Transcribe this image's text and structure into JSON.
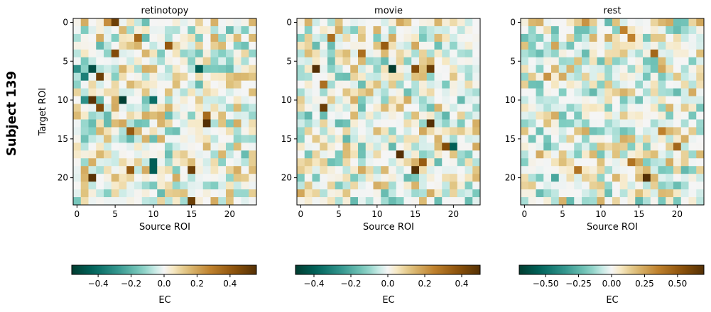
{
  "figure": {
    "row_label": "Subject 139"
  },
  "chart_data": [
    {
      "type": "heatmap",
      "title": "retinotopy",
      "xlabel": "Source ROI",
      "ylabel": "Target ROI",
      "n_rois": 24,
      "xticks": [
        0,
        5,
        10,
        15,
        20
      ],
      "yticks": [
        0,
        5,
        10,
        15,
        20
      ],
      "colormap": "BrBG_r",
      "vmin": -0.56,
      "vmax": 0.56,
      "colorbar": {
        "label": "EC",
        "ticks": [
          -0.4,
          -0.2,
          0.0,
          0.2,
          0.4
        ],
        "tick_labels": [
          "−0.4",
          "−0.2",
          "0.0",
          "0.2",
          "0.4"
        ]
      },
      "highlights": [
        {
          "r": 0,
          "c": 5,
          "v": 0.5
        },
        {
          "r": 0,
          "c": 4,
          "v": 0.25
        },
        {
          "r": 2,
          "c": 8,
          "v": 0.35
        },
        {
          "r": 3,
          "c": 12,
          "v": 0.4
        },
        {
          "r": 4,
          "c": 5,
          "v": 0.45
        },
        {
          "r": 6,
          "c": 2,
          "v": -0.5
        },
        {
          "r": 6,
          "c": 16,
          "v": -0.45
        },
        {
          "r": 7,
          "c": 3,
          "v": 0.5
        },
        {
          "r": 10,
          "c": 2,
          "v": 0.55
        },
        {
          "r": 10,
          "c": 6,
          "v": -0.55
        },
        {
          "r": 10,
          "c": 10,
          "v": -0.4
        },
        {
          "r": 11,
          "c": 3,
          "v": 0.45
        },
        {
          "r": 12,
          "c": 17,
          "v": 0.35
        },
        {
          "r": 13,
          "c": 17,
          "v": 0.56
        },
        {
          "r": 14,
          "c": 7,
          "v": 0.4
        },
        {
          "r": 19,
          "c": 7,
          "v": 0.4
        },
        {
          "r": 19,
          "c": 15,
          "v": 0.5
        },
        {
          "r": 20,
          "c": 2,
          "v": 0.55
        },
        {
          "r": 23,
          "c": 15,
          "v": 0.5
        },
        {
          "r": 18,
          "c": 10,
          "v": -0.45
        },
        {
          "r": 19,
          "c": 10,
          "v": -0.45
        },
        {
          "r": 6,
          "c": 0,
          "v": -0.3
        },
        {
          "r": 7,
          "c": 1,
          "v": -0.35
        },
        {
          "r": 10,
          "c": 1,
          "v": -0.3
        }
      ]
    },
    {
      "type": "heatmap",
      "title": "movie",
      "xlabel": "Source ROI",
      "ylabel": "",
      "n_rois": 24,
      "xticks": [
        0,
        5,
        10,
        15,
        20
      ],
      "yticks": [
        0,
        5,
        10,
        15,
        20
      ],
      "colormap": "BrBG_r",
      "vmin": -0.5,
      "vmax": 0.5,
      "colorbar": {
        "label": "EC",
        "ticks": [
          -0.4,
          -0.2,
          0.0,
          0.2,
          0.4
        ],
        "tick_labels": [
          "−0.4",
          "−0.2",
          "0.0",
          "0.2",
          "0.4"
        ]
      },
      "highlights": [
        {
          "r": 6,
          "c": 2,
          "v": 0.5
        },
        {
          "r": 6,
          "c": 12,
          "v": -0.5
        },
        {
          "r": 6,
          "c": 15,
          "v": 0.4
        },
        {
          "r": 6,
          "c": 17,
          "v": 0.45
        },
        {
          "r": 11,
          "c": 3,
          "v": 0.45
        },
        {
          "r": 13,
          "c": 17,
          "v": 0.5
        },
        {
          "r": 17,
          "c": 13,
          "v": 0.5
        },
        {
          "r": 19,
          "c": 15,
          "v": 0.5
        },
        {
          "r": 16,
          "c": 19,
          "v": 0.4
        },
        {
          "r": 16,
          "c": 20,
          "v": -0.4
        },
        {
          "r": 3,
          "c": 11,
          "v": 0.35
        },
        {
          "r": 4,
          "c": 8,
          "v": 0.3
        },
        {
          "r": 2,
          "c": 4,
          "v": 0.3
        },
        {
          "r": 8,
          "c": 3,
          "v": 0.3
        },
        {
          "r": 18,
          "c": 16,
          "v": 0.35
        }
      ]
    },
    {
      "type": "heatmap",
      "title": "rest",
      "xlabel": "Source ROI",
      "ylabel": "",
      "n_rois": 24,
      "xticks": [
        0,
        5,
        10,
        15,
        20
      ],
      "yticks": [
        0,
        5,
        10,
        15,
        20
      ],
      "colormap": "BrBG_r",
      "vmin": -0.7,
      "vmax": 0.7,
      "colorbar": {
        "label": "EC",
        "ticks": [
          -0.5,
          -0.25,
          0.0,
          0.25,
          0.5
        ],
        "tick_labels": [
          "−0.50",
          "−0.25",
          "0.00",
          "0.25",
          "0.50"
        ]
      },
      "highlights": [
        {
          "r": 20,
          "c": 16,
          "v": 0.7
        },
        {
          "r": 4,
          "c": 17,
          "v": 0.45
        },
        {
          "r": 2,
          "c": 14,
          "v": 0.35
        },
        {
          "r": 1,
          "c": 13,
          "v": 0.35
        },
        {
          "r": 16,
          "c": 20,
          "v": 0.45
        },
        {
          "r": 19,
          "c": 7,
          "v": 0.4
        },
        {
          "r": 18,
          "c": 14,
          "v": 0.4
        },
        {
          "r": 14,
          "c": 18,
          "v": 0.35
        },
        {
          "r": 0,
          "c": 8,
          "v": 0.3
        },
        {
          "r": 7,
          "c": 3,
          "v": 0.3
        },
        {
          "r": 20,
          "c": 4,
          "v": -0.3
        },
        {
          "r": 3,
          "c": 4,
          "v": 0.25
        }
      ]
    }
  ]
}
